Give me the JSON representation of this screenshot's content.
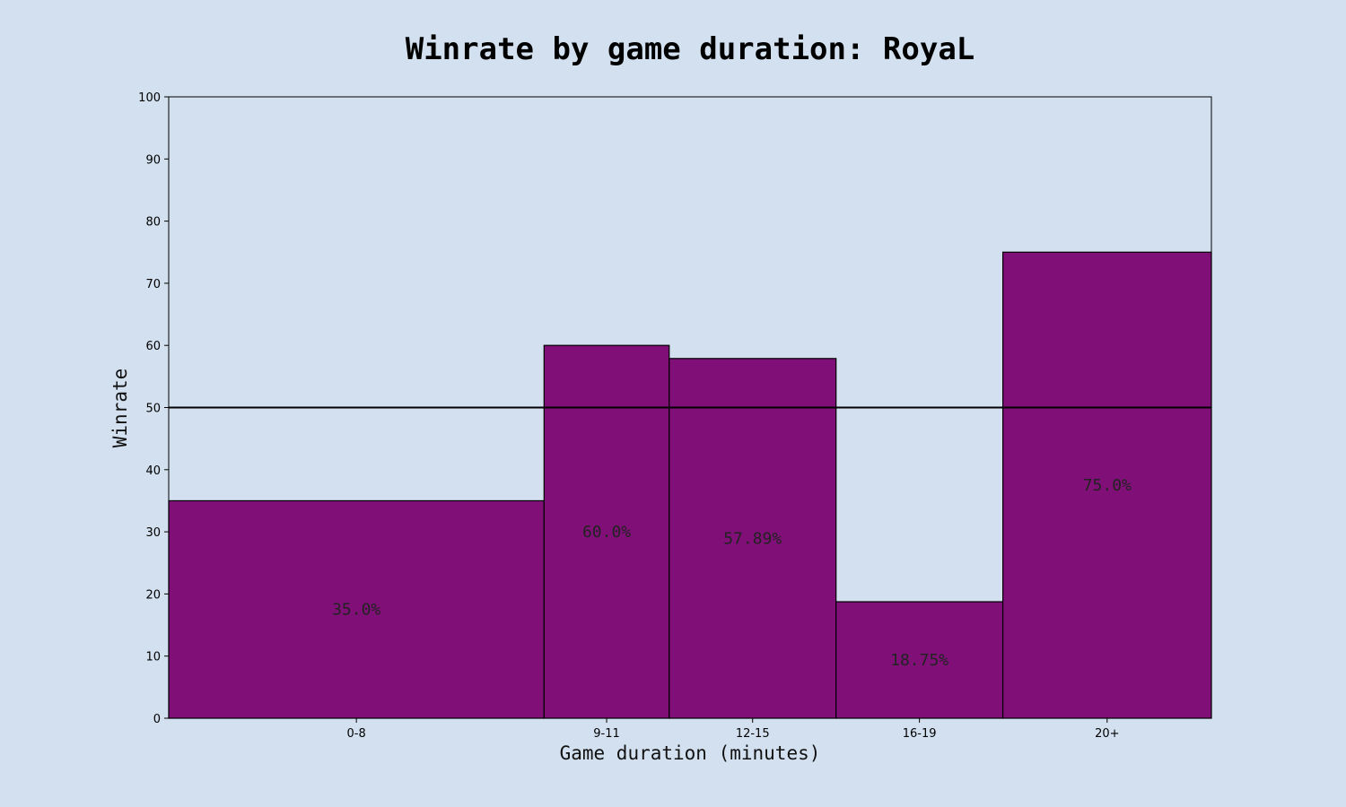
{
  "chart_data": {
    "type": "bar",
    "title": "Winrate by game duration: RoyaL",
    "xlabel": "Game duration (minutes)",
    "ylabel": "Winrate",
    "categories": [
      "0-8",
      "9-11",
      "12-15",
      "16-19",
      "20+"
    ],
    "bin_edges": [
      0,
      9,
      12,
      16,
      20,
      25
    ],
    "values": [
      35.0,
      60.0,
      57.89,
      18.75,
      75.0
    ],
    "value_labels": [
      "35.0%",
      "60.0%",
      "57.89%",
      "18.75%",
      "75.0%"
    ],
    "ylim": [
      0,
      100
    ],
    "yticks": [
      0,
      10,
      20,
      30,
      40,
      50,
      60,
      70,
      80,
      90,
      100
    ],
    "reference_line": 50,
    "grid": false,
    "colors": {
      "background": "#d2e0ef",
      "plot_background": "#d2e0ef",
      "bar_fill": "#801078",
      "bar_edge": "#000000",
      "reference_line": "#000000"
    }
  }
}
